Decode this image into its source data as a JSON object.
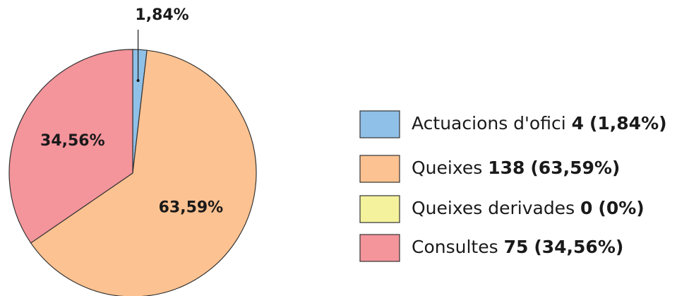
{
  "chart_data": {
    "type": "pie",
    "categories": [
      "Actuacions d'ofici",
      "Queixes",
      "Queixes derivades",
      "Consultes"
    ],
    "values": [
      1.84,
      63.59,
      0,
      34.56
    ],
    "value_labels": [
      "1,84%",
      "63,59%",
      null,
      "34,56%"
    ],
    "counts": [
      4,
      138,
      0,
      75
    ],
    "legend_percent_labels": [
      "(1,84%)",
      "(63,59%)",
      "(0%)",
      "(34,56%)"
    ],
    "colors": [
      "#8fc0e8",
      "#fdc291",
      "#f4f29c",
      "#f4949b"
    ]
  }
}
